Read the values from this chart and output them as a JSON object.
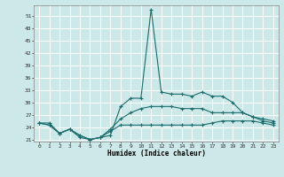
{
  "title": "",
  "xlabel": "Humidex (Indice chaleur)",
  "bg_color": "#cce8e8",
  "line_color": "#1a6b6b",
  "grid_color": "#ffffff",
  "xlim": [
    -0.5,
    23.5
  ],
  "ylim": [
    20.5,
    53.5
  ],
  "yticks": [
    21,
    24,
    27,
    30,
    33,
    36,
    39,
    42,
    45,
    48,
    51
  ],
  "xticks": [
    0,
    1,
    2,
    3,
    4,
    5,
    6,
    7,
    8,
    9,
    10,
    11,
    12,
    13,
    14,
    15,
    16,
    17,
    18,
    19,
    20,
    21,
    22,
    23
  ],
  "series": [
    [
      25.0,
      25.0,
      22.5,
      23.5,
      22.0,
      21.0,
      21.5,
      22.0,
      29.0,
      31.0,
      31.0,
      52.5,
      32.5,
      32.0,
      32.0,
      31.5,
      32.5,
      31.5,
      31.5,
      30.0,
      27.5,
      26.5,
      25.5,
      25.0
    ],
    [
      25.0,
      24.5,
      22.5,
      23.5,
      21.5,
      21.0,
      21.5,
      23.0,
      24.5,
      24.5,
      24.5,
      24.5,
      24.5,
      24.5,
      24.5,
      24.5,
      24.5,
      25.0,
      25.5,
      25.5,
      25.5,
      25.5,
      25.0,
      24.5
    ],
    [
      25.0,
      24.5,
      22.5,
      23.5,
      22.0,
      21.0,
      21.5,
      23.5,
      26.0,
      27.5,
      28.5,
      29.0,
      29.0,
      29.0,
      28.5,
      28.5,
      28.5,
      27.5,
      27.5,
      27.5,
      27.5,
      26.5,
      26.0,
      25.5
    ]
  ]
}
